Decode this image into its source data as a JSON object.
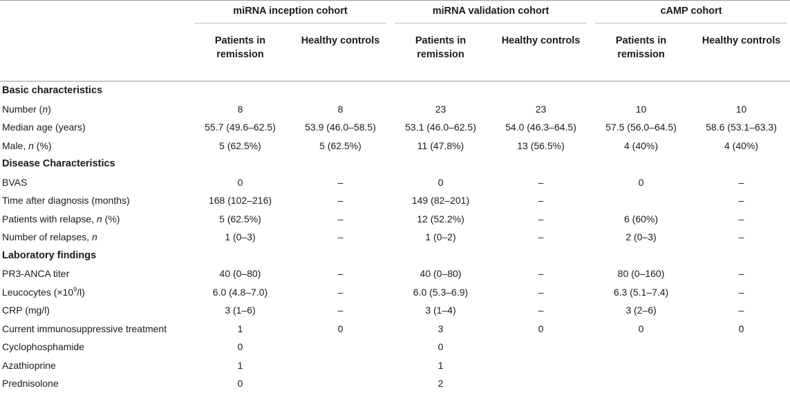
{
  "cohorts": [
    "miRNA inception cohort",
    "miRNA validation cohort",
    "cAMP cohort"
  ],
  "subheaders": {
    "patients": [
      "Patients in",
      "remission"
    ],
    "controls": "Healthy controls"
  },
  "rows": [
    {
      "type": "section",
      "label": "Basic characteristics"
    },
    {
      "type": "data",
      "label": "Number (",
      "label_italic": "n",
      "label_after": ")",
      "values": [
        "8",
        "8",
        "23",
        "23",
        "10",
        "10"
      ]
    },
    {
      "type": "data",
      "label": "Median age (years)",
      "values": [
        "55.7 (49.6–62.5)",
        "53.9 (46.0–58.5)",
        "53.1 (46.0–62.5)",
        "54.0 (46.3–64.5)",
        "57.5 (56.0–64.5)",
        "58.6 (53.1–63.3)"
      ]
    },
    {
      "type": "data",
      "label": "Male, ",
      "label_italic": "n",
      "label_after": " (%)",
      "values": [
        "5 (62.5%)",
        "5 (62.5%)",
        "11 (47.8%)",
        "13 (56.5%)",
        "4 (40%)",
        "4 (40%)"
      ]
    },
    {
      "type": "section",
      "label": "Disease Characteristics"
    },
    {
      "type": "data",
      "label": "BVAS",
      "values": [
        "0",
        "–",
        "0",
        "–",
        "0",
        "–"
      ]
    },
    {
      "type": "data",
      "label": "Time after diagnosis (months)",
      "values": [
        "168 (102–216)",
        "–",
        "149 (82–201)",
        "–",
        "",
        "–"
      ]
    },
    {
      "type": "data",
      "label": "Patients with relapse, ",
      "label_italic": "n",
      "label_after": " (%)",
      "values": [
        "5 (62.5%)",
        "–",
        "12 (52.2%)",
        "–",
        "6 (60%)",
        "–"
      ]
    },
    {
      "type": "data",
      "label": "Number of relapses, ",
      "label_italic": "n",
      "label_after": "",
      "values": [
        "1 (0–3)",
        "–",
        "1 (0–2)",
        "–",
        "2 (0–3)",
        "–"
      ]
    },
    {
      "type": "section",
      "label": "Laboratory findings"
    },
    {
      "type": "data",
      "label": "PR3-ANCA titer",
      "values": [
        "40 (0–80)",
        "–",
        "40 (0–80)",
        "–",
        "80 (0–160)",
        "–"
      ]
    },
    {
      "type": "data",
      "label": "Leucocytes (×10",
      "label_sup": "9",
      "label_after": "/l)",
      "values": [
        "6.0 (4.8–7.0)",
        "–",
        "6.0 (5.3–6.9)",
        "–",
        "6.3 (5.1–7.4)",
        "–"
      ]
    },
    {
      "type": "data",
      "label": "CRP (mg/l)",
      "values": [
        "3 (1–6)",
        "–",
        "3 (1–4)",
        "–",
        "3 (2–6)",
        "–"
      ]
    },
    {
      "type": "data",
      "label": "Current immunosuppressive treatment",
      "values": [
        "1",
        "0",
        "3",
        "0",
        "0",
        "0"
      ]
    },
    {
      "type": "data",
      "label": "Cyclophosphamide",
      "values": [
        "0",
        "",
        "0",
        "",
        "",
        ""
      ]
    },
    {
      "type": "data",
      "label": "Azathioprine",
      "values": [
        "1",
        "",
        "1",
        "",
        "",
        ""
      ]
    },
    {
      "type": "data",
      "label": "Prednisolone",
      "values": [
        "0",
        "",
        "2",
        "",
        "",
        ""
      ]
    }
  ]
}
